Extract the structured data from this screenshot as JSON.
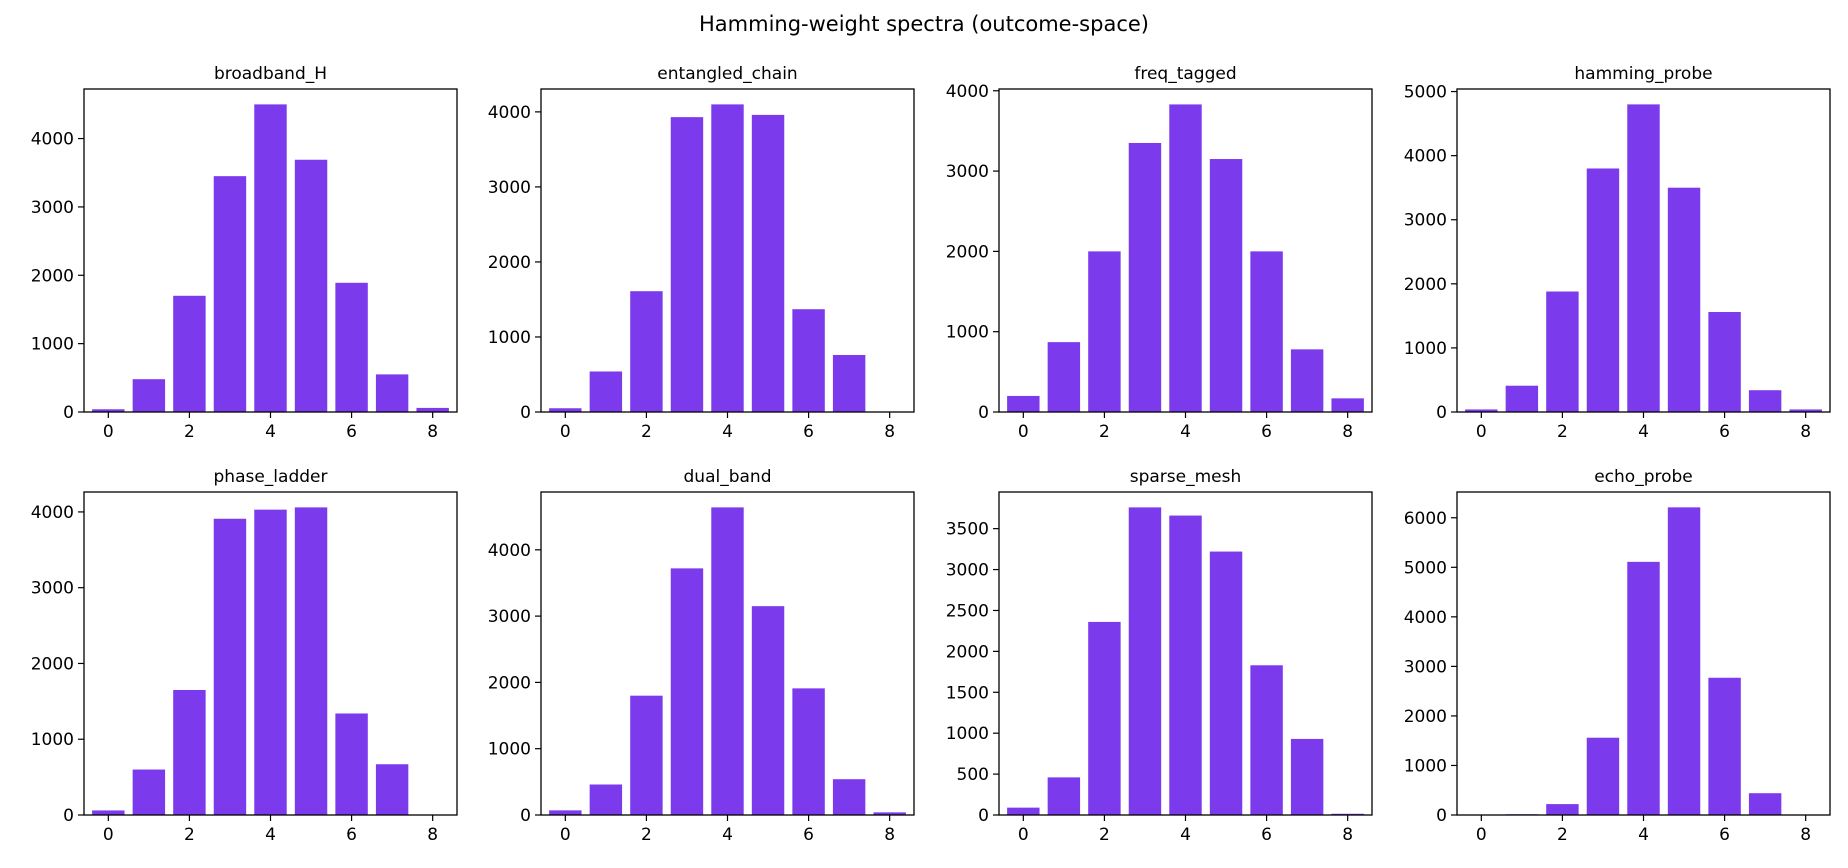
{
  "title": "Hamming-weight spectra (outcome-space)",
  "colors": {
    "bar": "#7c3aed",
    "axis": "#000000"
  },
  "chart_data": [
    {
      "type": "bar",
      "title": "broadband_H",
      "x": [
        0,
        1,
        2,
        3,
        4,
        5,
        6,
        7,
        8
      ],
      "values": [
        40,
        480,
        1700,
        3450,
        4500,
        3690,
        1890,
        550,
        60
      ],
      "xticks": [
        0,
        2,
        4,
        6,
        8
      ],
      "yticks": [
        0,
        1000,
        2000,
        3000,
        4000
      ],
      "ylim": [
        0,
        4725
      ],
      "xlim": [
        -0.6,
        8.6
      ]
    },
    {
      "type": "bar",
      "title": "entangled_chain",
      "x": [
        0,
        1,
        2,
        3,
        4,
        5,
        6,
        7,
        8
      ],
      "values": [
        50,
        540,
        1610,
        3930,
        4100,
        3960,
        1370,
        760,
        5
      ],
      "xticks": [
        0,
        2,
        4,
        6,
        8
      ],
      "yticks": [
        0,
        1000,
        2000,
        3000,
        4000
      ],
      "ylim": [
        0,
        4305
      ],
      "xlim": [
        -0.6,
        8.6
      ]
    },
    {
      "type": "bar",
      "title": "freq_tagged",
      "x": [
        0,
        1,
        2,
        3,
        4,
        5,
        6,
        7,
        8
      ],
      "values": [
        200,
        870,
        2000,
        3350,
        3830,
        3150,
        2000,
        780,
        170
      ],
      "xticks": [
        0,
        2,
        4,
        6,
        8
      ],
      "yticks": [
        0,
        1000,
        2000,
        3000,
        4000
      ],
      "ylim": [
        0,
        4022
      ],
      "xlim": [
        -0.6,
        8.6
      ]
    },
    {
      "type": "bar",
      "title": "hamming_probe",
      "x": [
        0,
        1,
        2,
        3,
        4,
        5,
        6,
        7,
        8
      ],
      "values": [
        40,
        410,
        1880,
        3800,
        4800,
        3500,
        1560,
        340,
        40
      ],
      "xticks": [
        0,
        2,
        4,
        6,
        8
      ],
      "yticks": [
        0,
        1000,
        2000,
        3000,
        4000,
        5000
      ],
      "ylim": [
        0,
        5040
      ],
      "xlim": [
        -0.6,
        8.6
      ]
    },
    {
      "type": "bar",
      "title": "phase_ladder",
      "x": [
        0,
        1,
        2,
        3,
        4,
        5,
        6,
        7,
        8
      ],
      "values": [
        60,
        600,
        1650,
        3910,
        4030,
        4060,
        1340,
        670,
        5
      ],
      "xticks": [
        0,
        2,
        4,
        6,
        8
      ],
      "yticks": [
        0,
        1000,
        2000,
        3000,
        4000
      ],
      "ylim": [
        0,
        4263
      ],
      "xlim": [
        -0.6,
        8.6
      ]
    },
    {
      "type": "bar",
      "title": "dual_band",
      "x": [
        0,
        1,
        2,
        3,
        4,
        5,
        6,
        7,
        8
      ],
      "values": [
        70,
        460,
        1800,
        3720,
        4640,
        3150,
        1910,
        540,
        40
      ],
      "xticks": [
        0,
        2,
        4,
        6,
        8
      ],
      "yticks": [
        0,
        1000,
        2000,
        3000,
        4000
      ],
      "ylim": [
        0,
        4872
      ],
      "xlim": [
        -0.6,
        8.6
      ]
    },
    {
      "type": "bar",
      "title": "sparse_mesh",
      "x": [
        0,
        1,
        2,
        3,
        4,
        5,
        6,
        7,
        8
      ],
      "values": [
        90,
        460,
        2360,
        3760,
        3660,
        3220,
        1830,
        930,
        15
      ],
      "xticks": [
        0,
        2,
        4,
        6,
        8
      ],
      "yticks": [
        0,
        500,
        1000,
        1500,
        2000,
        2500,
        3000,
        3500
      ],
      "ylim": [
        0,
        3948
      ],
      "xlim": [
        -0.6,
        8.6
      ]
    },
    {
      "type": "bar",
      "title": "echo_probe",
      "x": [
        0,
        1,
        2,
        3,
        4,
        5,
        6,
        7,
        8
      ],
      "values": [
        5,
        15,
        220,
        1560,
        5110,
        6210,
        2770,
        440,
        10
      ],
      "xticks": [
        0,
        2,
        4,
        6,
        8
      ],
      "yticks": [
        0,
        1000,
        2000,
        3000,
        4000,
        5000,
        6000
      ],
      "ylim": [
        0,
        6520
      ],
      "xlim": [
        -0.6,
        8.6
      ]
    }
  ]
}
